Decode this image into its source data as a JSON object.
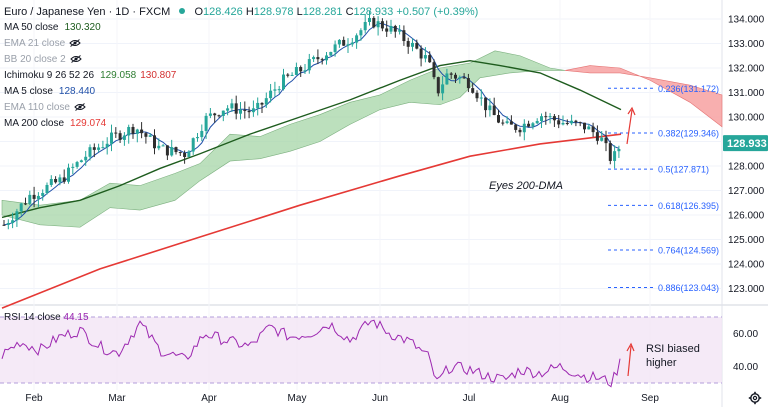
{
  "header": {
    "symbol": "Euro / Japanese Yen · 1D · FXCM",
    "ohlc": {
      "o_label": "O",
      "o": "128.426",
      "h_label": "H",
      "h": "128.978",
      "l_label": "L",
      "l": "128.281",
      "c_label": "C",
      "c": "128.933",
      "chg": "+0.507 (+0.39%)"
    }
  },
  "indicators": [
    {
      "label": "MA 50 close",
      "value": "130.320",
      "color": "#1e5c1e",
      "visible": true
    },
    {
      "label": "EMA 21 close",
      "value": "",
      "color": "#131722",
      "visible": false
    },
    {
      "label": "BB 20 close 2",
      "value": "",
      "color": "#131722",
      "visible": false
    },
    {
      "label": "Ichimoku 9 26 52 26",
      "value": "129.058",
      "value2": "130.807",
      "color": "#2e7d32",
      "color2": "#d32f2f",
      "visible": true
    },
    {
      "label": "MA 5 close",
      "value": "128.440",
      "color": "#1f4fa8",
      "visible": true
    },
    {
      "label": "EMA 110 close",
      "value": "",
      "color": "#131722",
      "visible": false
    },
    {
      "label": "MA 200 close",
      "value": "129.074",
      "color": "#e53935",
      "visible": true
    }
  ],
  "rsi": {
    "label": "RSI 14 close",
    "value": "44.15",
    "color": "#9c27b0"
  },
  "colors": {
    "up": "#26a69a",
    "down": "#2e2e2e",
    "ma50": "#1e5c1e",
    "ma200": "#e53935",
    "ma5": "#1f4fa8",
    "cloud_bull": "#a5d6a7",
    "cloud_bear": "#f7a1a1",
    "price_tag": "#26a69a",
    "rsi": "#9c27b0",
    "rsi_band": "#f3e5f5",
    "fib": "#2962ff",
    "arrow": "#e53935"
  },
  "annotations": {
    "eyes": "Eyes 200-DMA",
    "rsi_note_line1": "RSI biased",
    "rsi_note_line2": "higher"
  },
  "chart_data": {
    "type": "candlestick",
    "price_axis": {
      "ticks": [
        134.0,
        133.0,
        132.0,
        131.0,
        130.0,
        129.0,
        128.0,
        127.0,
        126.0,
        125.0,
        124.0,
        123.0
      ],
      "tick_labels": [
        "134.000",
        "133.000",
        "132.000",
        "131.000",
        "130.000",
        "129.000",
        "128.000",
        "127.000",
        "126.000",
        "125.000",
        "124.000",
        "123.000"
      ],
      "range": [
        122.3,
        134.6
      ]
    },
    "last_price": "128.933",
    "x_labels": [
      "Feb",
      "Mar",
      "Apr",
      "May",
      "Jun",
      "Jul",
      "Aug",
      "Sep"
    ],
    "fib_levels": [
      {
        "label": "0.236(131.172)",
        "value": 131.172
      },
      {
        "label": "0.382(129.346)",
        "value": 129.346
      },
      {
        "label": "0.5(127.871)",
        "value": 127.871
      },
      {
        "label": "0.618(126.395)",
        "value": 126.395
      },
      {
        "label": "0.764(124.569)",
        "value": 124.569
      },
      {
        "label": "0.886(123.043)",
        "value": 123.043
      }
    ],
    "rsi_axis": {
      "ticks": [
        60.0,
        40.0
      ],
      "tick_labels": [
        "60.00",
        "40.00"
      ],
      "upper_band": 70,
      "lower_band": 30
    }
  }
}
